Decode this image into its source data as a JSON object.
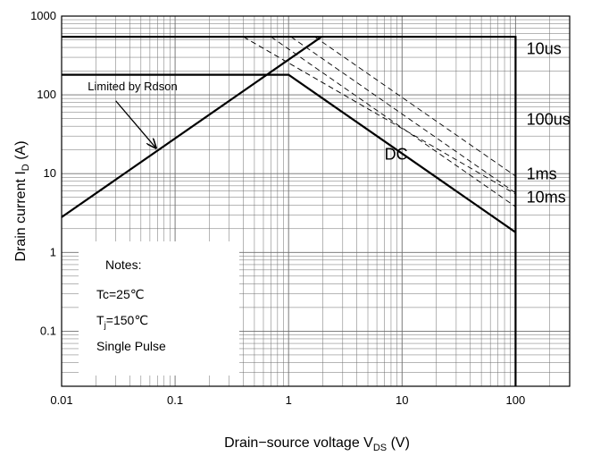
{
  "chart_data": {
    "type": "line",
    "scale": {
      "x": "log",
      "y": "log"
    },
    "xlim": [
      0.01,
      300
    ],
    "ylim": [
      0.02,
      1000
    ],
    "grid": true,
    "xlabel": "Drain−source voltage V",
    "xlabel_sub": "DS",
    "xlabel_unit": " (V)",
    "ylabel": "Drain current I",
    "ylabel_sub": "D",
    "ylabel_unit": " (A)",
    "x_ticks": [
      {
        "value": 0.01,
        "label": "0.01"
      },
      {
        "value": 0.1,
        "label": "0.1"
      },
      {
        "value": 1,
        "label": "1"
      },
      {
        "value": 10,
        "label": "10"
      },
      {
        "value": 100,
        "label": "100"
      }
    ],
    "y_ticks": [
      {
        "value": 1000,
        "label": "1000"
      },
      {
        "value": 100,
        "label": "100"
      },
      {
        "value": 10,
        "label": "10"
      },
      {
        "value": 1,
        "label": "1"
      },
      {
        "value": 0.1,
        "label": "0.1"
      }
    ],
    "series": [
      {
        "name": "Limited by Rdson",
        "style": "solid",
        "x": [
          0.01,
          1.95
        ],
        "y": [
          2.8,
          545
        ]
      },
      {
        "name": "10us",
        "style": "solid",
        "x": [
          0.01,
          100,
          100
        ],
        "y": [
          545,
          545,
          0.02
        ]
      },
      {
        "name": "DC",
        "style": "solid",
        "x": [
          0.01,
          1,
          100
        ],
        "y": [
          180,
          180,
          1.8
        ]
      },
      {
        "name": "10us",
        "style": "dashed",
        "x": [
          0.4,
          100
        ],
        "y": [
          545,
          5.5
        ]
      },
      {
        "name": "100us",
        "style": "dashed",
        "x": [
          0.7,
          100
        ],
        "y": [
          545,
          3.8
        ]
      },
      {
        "name": "1ms",
        "style": "dashed",
        "x": [
          1.05,
          100
        ],
        "y": [
          545,
          5.7
        ]
      },
      {
        "name": "10ms",
        "style": "dashed",
        "x": [
          1.7,
          100
        ],
        "y": [
          545,
          9.3
        ]
      }
    ],
    "annotations": [
      {
        "text": "10us",
        "x": 125,
        "y": 330
      },
      {
        "text": "100us",
        "x": 125,
        "y": 42
      },
      {
        "text": "1ms",
        "x": 125,
        "y": 8.5
      },
      {
        "text": "10ms",
        "x": 125,
        "y": 4.3
      },
      {
        "text": "DC",
        "x": 7.0,
        "y": 15
      },
      {
        "text": "Limited by Rdson",
        "x": 0.017,
        "y": 115,
        "arrow_to": [
          0.068,
          18
        ]
      }
    ],
    "notes": [
      "Notes:",
      "Tc=25℃",
      "T",
      "Single Pulse"
    ],
    "notes_tj_sub": "j",
    "notes_tj_rest": "=150℃",
    "legend": "bottom-left",
    "colors": {
      "curve": "#000000",
      "grid": "#6e6e6e"
    }
  }
}
